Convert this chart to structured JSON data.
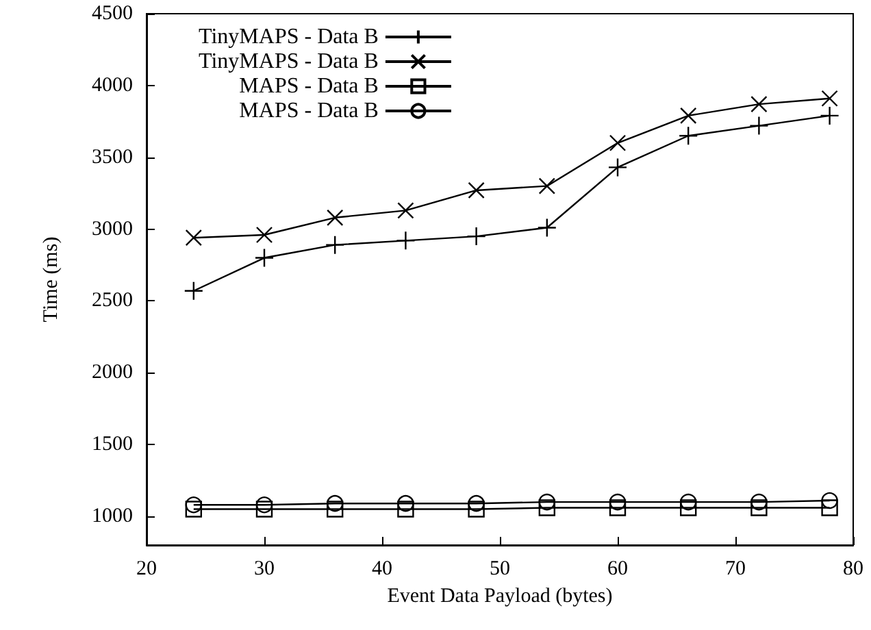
{
  "chart_data": {
    "type": "line",
    "xlabel": "Event Data Payload (bytes)",
    "ylabel": "Time (ms)",
    "x": [
      24,
      30,
      36,
      42,
      48,
      54,
      60,
      66,
      72,
      78
    ],
    "series": [
      {
        "name": "TinyMAPS - Data B",
        "color": "#000000",
        "marker": "plus",
        "values": [
          2570,
          2800,
          2890,
          2920,
          2950,
          3010,
          3430,
          3650,
          3720,
          3790
        ]
      },
      {
        "name": "TinyMAPS - Data B",
        "color": "#000000",
        "marker": "cross",
        "values": [
          2940,
          2960,
          3080,
          3130,
          3270,
          3300,
          3600,
          3790,
          3870,
          3910
        ]
      },
      {
        "name": "MAPS - Data B",
        "color": "#000000",
        "marker": "square",
        "values": [
          1050,
          1050,
          1050,
          1050,
          1050,
          1060,
          1060,
          1060,
          1060,
          1060
        ]
      },
      {
        "name": "MAPS - Data B",
        "color": "#000000",
        "marker": "circle",
        "values": [
          1080,
          1080,
          1090,
          1090,
          1090,
          1100,
          1100,
          1100,
          1100,
          1110
        ]
      }
    ],
    "xlim": [
      20,
      80
    ],
    "xticks": [
      20,
      30,
      40,
      50,
      60,
      70,
      80
    ],
    "ylim": [
      800,
      4500
    ],
    "yticks": [
      1000,
      1500,
      2000,
      2500,
      3000,
      3500,
      4000,
      4500
    ],
    "grid": false,
    "legend": "top left",
    "line_style": "solid"
  }
}
